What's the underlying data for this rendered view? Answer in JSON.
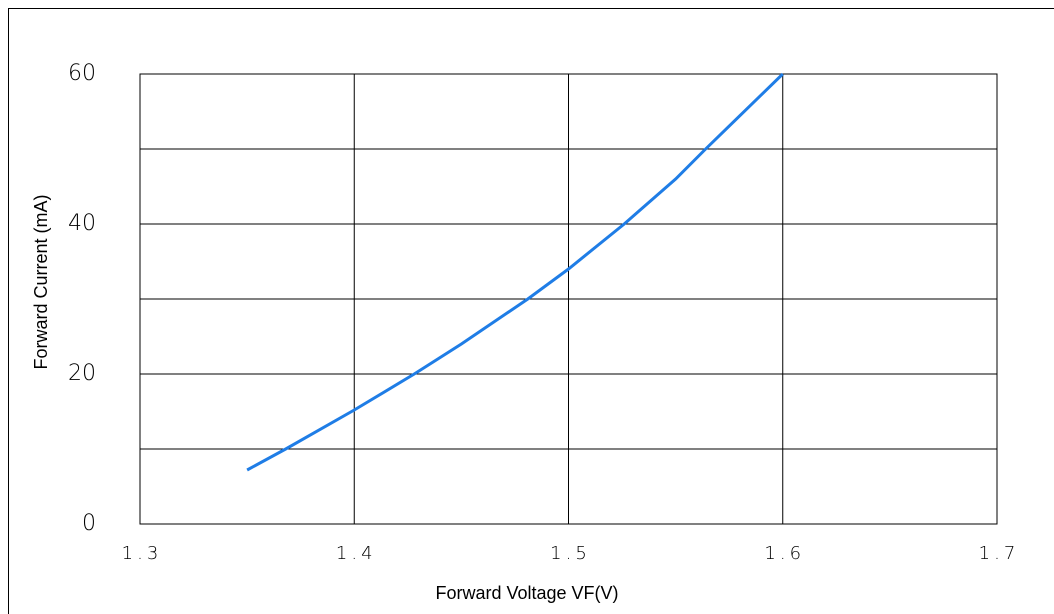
{
  "chart_data": {
    "type": "line",
    "x_label": "Forward Voltage  VF(V)",
    "y_label": "Forward Current (mA)",
    "series": [
      {
        "color": "#1f7de6",
        "x": [
          1.35,
          1.368,
          1.4,
          1.428,
          1.45,
          1.481,
          1.5,
          1.526,
          1.55,
          1.564,
          1.6
        ],
        "values": [
          7.2,
          10,
          15.2,
          20,
          24,
          30,
          34,
          40,
          46,
          50,
          60
        ]
      }
    ],
    "xlim": [
      1.3,
      1.7
    ],
    "xticks": [
      1.3,
      1.4,
      1.5,
      1.6,
      1.7
    ],
    "ylim": [
      0,
      60
    ],
    "yticks": [
      0,
      20,
      40,
      60
    ],
    "minor_yticks": [
      10,
      30,
      50
    ],
    "grid": true
  }
}
